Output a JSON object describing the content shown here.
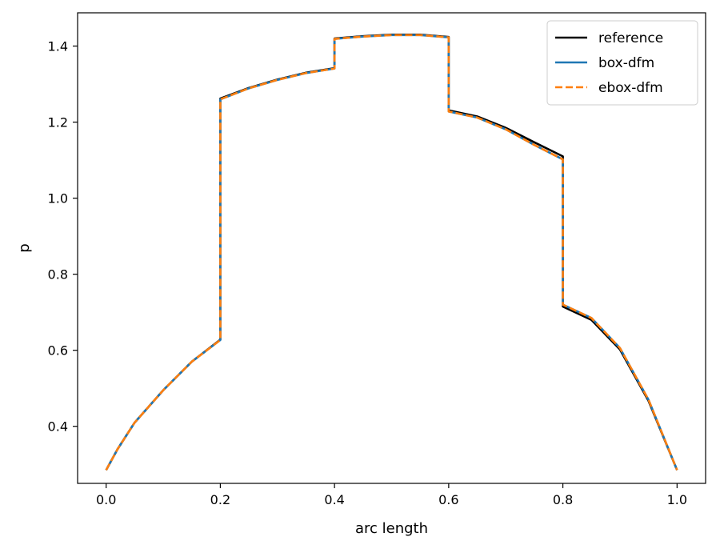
{
  "chart_data": {
    "type": "line",
    "xlabel": "arc length",
    "ylabel": "p",
    "xlim": [
      -0.05,
      1.05
    ],
    "ylim": [
      0.25,
      1.4875
    ],
    "xticks": [
      0.0,
      0.2,
      0.4,
      0.6,
      0.8,
      1.0
    ],
    "xtick_labels": [
      "0.0",
      "0.2",
      "0.4",
      "0.6",
      "0.8",
      "1.0"
    ],
    "yticks": [
      0.4,
      0.6,
      0.8,
      1.0,
      1.2,
      1.4
    ],
    "ytick_labels": [
      "0.4",
      "0.6",
      "0.8",
      "1.0",
      "1.2",
      "1.4"
    ],
    "grid": false,
    "legend_position": "upper right",
    "series": [
      {
        "name": "reference",
        "color": "#000000",
        "style": "solid",
        "x": [
          0.0,
          0.02,
          0.05,
          0.1,
          0.15,
          0.2,
          0.2,
          0.25,
          0.3,
          0.35,
          0.4,
          0.4,
          0.45,
          0.5,
          0.55,
          0.6,
          0.6,
          0.65,
          0.7,
          0.75,
          0.8,
          0.8,
          0.85,
          0.9,
          0.95,
          1.0
        ],
        "y": [
          0.285,
          0.34,
          0.41,
          0.495,
          0.57,
          0.628,
          1.262,
          1.29,
          1.312,
          1.33,
          1.342,
          1.42,
          1.426,
          1.43,
          1.43,
          1.424,
          1.231,
          1.215,
          1.185,
          1.147,
          1.11,
          0.715,
          0.68,
          0.602,
          0.467,
          0.285
        ]
      },
      {
        "name": "box-dfm",
        "color": "#1f77b4",
        "style": "solid",
        "x": [
          0.0,
          0.02,
          0.05,
          0.1,
          0.15,
          0.2,
          0.2,
          0.25,
          0.3,
          0.35,
          0.4,
          0.4,
          0.45,
          0.5,
          0.55,
          0.6,
          0.6,
          0.65,
          0.7,
          0.75,
          0.8,
          0.8,
          0.85,
          0.9,
          0.95,
          1.0
        ],
        "y": [
          0.285,
          0.34,
          0.41,
          0.495,
          0.57,
          0.627,
          1.26,
          1.289,
          1.311,
          1.329,
          1.341,
          1.419,
          1.425,
          1.429,
          1.429,
          1.423,
          1.228,
          1.212,
          1.181,
          1.14,
          1.102,
          0.72,
          0.685,
          0.606,
          0.47,
          0.285
        ]
      },
      {
        "name": "ebox-dfm",
        "color": "#ff7f0e",
        "style": "dashed",
        "x": [
          0.0,
          0.02,
          0.05,
          0.1,
          0.15,
          0.2,
          0.2,
          0.25,
          0.3,
          0.35,
          0.4,
          0.4,
          0.45,
          0.5,
          0.55,
          0.6,
          0.6,
          0.65,
          0.7,
          0.75,
          0.8,
          0.8,
          0.85,
          0.9,
          0.95,
          1.0
        ],
        "y": [
          0.285,
          0.34,
          0.41,
          0.495,
          0.57,
          0.627,
          1.26,
          1.289,
          1.311,
          1.329,
          1.341,
          1.419,
          1.425,
          1.429,
          1.429,
          1.423,
          1.228,
          1.212,
          1.181,
          1.14,
          1.102,
          0.72,
          0.685,
          0.606,
          0.47,
          0.285
        ]
      }
    ]
  }
}
